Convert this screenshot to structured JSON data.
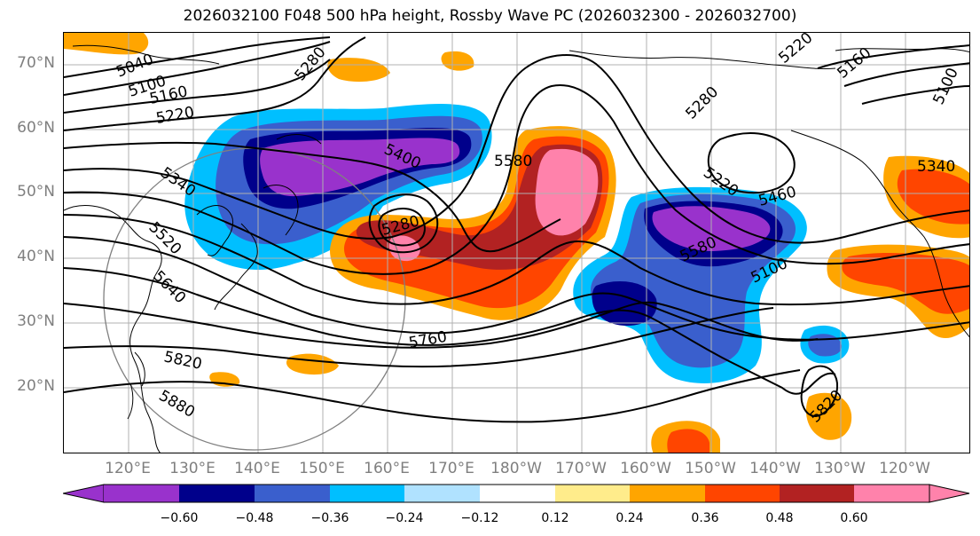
{
  "title": "2026032100 F048 500 hPa height, Rossby Wave PC (2026032300 - 2026032700)",
  "latitude_labels": [
    "70°N",
    "60°N",
    "50°N",
    "40°N",
    "30°N",
    "20°N"
  ],
  "longitude_labels": [
    "120°E",
    "130°E",
    "140°E",
    "150°E",
    "160°E",
    "170°E",
    "180°W",
    "170°W",
    "160°W",
    "150°W",
    "140°W",
    "130°W",
    "120°W"
  ],
  "contour_labels": [
    "5040",
    "5100",
    "5160",
    "5220",
    "5280",
    "5340",
    "5400",
    "5460",
    "5520",
    "5580",
    "5640",
    "5760",
    "5820",
    "5880",
    "5280",
    "5580",
    "5280",
    "5220",
    "5460",
    "5580",
    "5100",
    "5340",
    "5220",
    "5160",
    "5100",
    "5820"
  ],
  "colorbar": {
    "ticks": [
      "−0.60",
      "−0.48",
      "−0.36",
      "−0.24",
      "−0.12",
      "0.12",
      "0.24",
      "0.36",
      "0.48",
      "0.60"
    ],
    "colors": [
      "#9932cc",
      "#00008b",
      "#3a5fcd",
      "#00bfff",
      "#b0e2ff",
      "#ffffff",
      "#ffec8b",
      "#ffa500",
      "#ff4500",
      "#b22222",
      "#ff82ab"
    ]
  },
  "shading": {
    "negative_anomaly_colors": [
      "#00bfff",
      "#3a5fcd",
      "#00008b",
      "#9932cc"
    ],
    "positive_anomaly_colors": [
      "#ffa500",
      "#ff4500",
      "#b22222",
      "#ff82ab"
    ]
  }
}
